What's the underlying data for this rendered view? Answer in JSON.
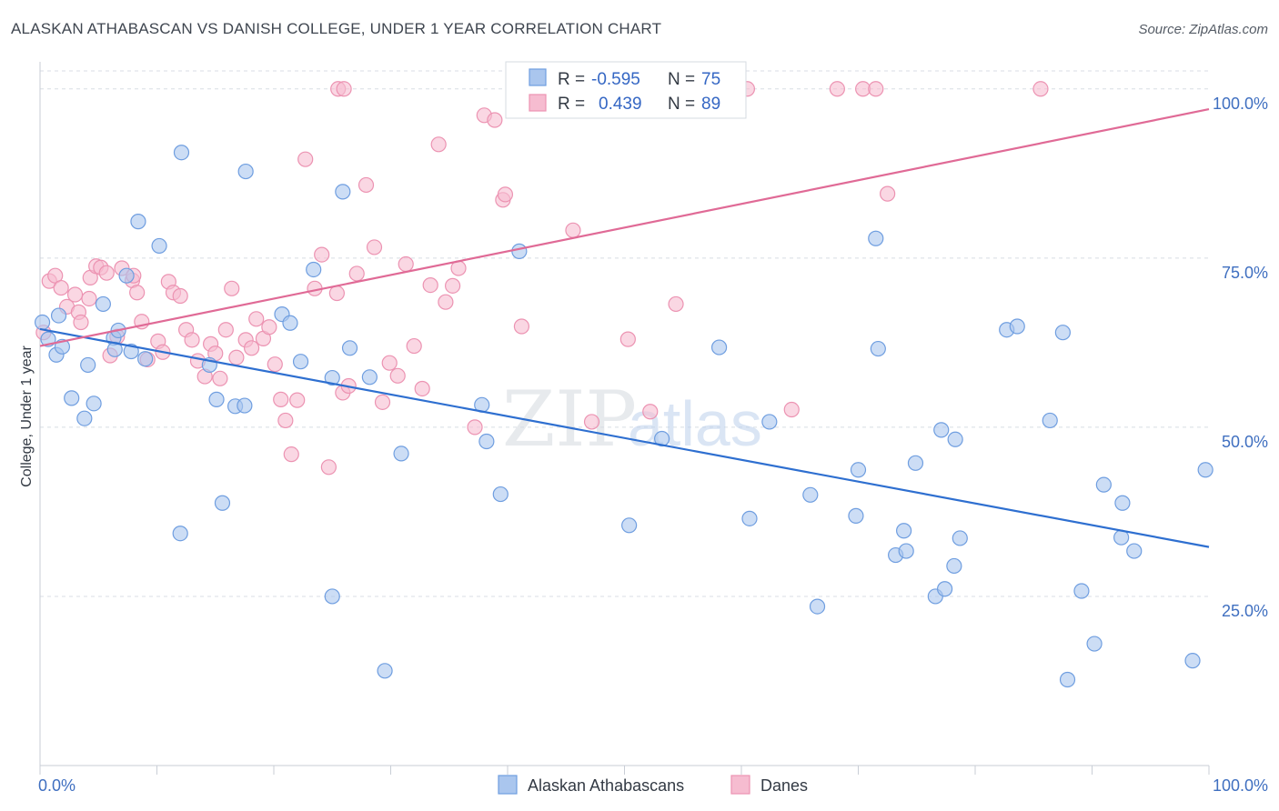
{
  "title": "ALASKAN ATHABASCAN VS DANISH COLLEGE, UNDER 1 YEAR CORRELATION CHART",
  "source": "Source: ZipAtlas.com",
  "watermark": {
    "zip": "ZIP",
    "atlas": "atlas"
  },
  "colors": {
    "blue_fill": "#aac6ee",
    "blue_stroke": "#6f9ee0",
    "blue_line": "#2e6fd0",
    "pink_fill": "#f6bcd0",
    "pink_stroke": "#ec93b2",
    "pink_line": "#e06a96",
    "grid": "#d8dde4",
    "label": "#3f6fc0"
  },
  "stats": {
    "r_label": "R =",
    "n_label": "N =",
    "blue": {
      "r": "-0.595",
      "n": "75"
    },
    "pink": {
      "r": "0.439",
      "n": "89"
    }
  },
  "legend": [
    "Alaskan Athabascans",
    "Danes"
  ],
  "chart_data": {
    "type": "scatter",
    "title": "ALASKAN ATHABASCAN VS DANISH COLLEGE, UNDER 1 YEAR CORRELATION CHART",
    "xlabel": "",
    "ylabel": "College, Under 1 year",
    "xlim": [
      0,
      100
    ],
    "ylim": [
      0,
      104
    ],
    "x_tick_labels": [
      "0.0%",
      "100.0%"
    ],
    "y_ticks": [
      25,
      50,
      75,
      100
    ],
    "y_tick_labels": [
      "25.0%",
      "50.0%",
      "75.0%",
      "100.0%"
    ],
    "grid": "horizontal dashed",
    "legend_position": "bottom-center",
    "series": [
      {
        "name": "Alaskan Athabascans",
        "trend": {
          "x": [
            0,
            100
          ],
          "y": [
            64.5,
            32.3
          ]
        },
        "points": [
          [
            0.2,
            65.5
          ],
          [
            0.7,
            63.0
          ],
          [
            1.4,
            60.7
          ],
          [
            1.6,
            66.5
          ],
          [
            1.9,
            61.9
          ],
          [
            2.7,
            54.3
          ],
          [
            3.8,
            51.3
          ],
          [
            4.1,
            59.2
          ],
          [
            4.6,
            53.5
          ],
          [
            5.4,
            68.2
          ],
          [
            6.3,
            63.2
          ],
          [
            7.4,
            72.4
          ],
          [
            6.4,
            61.5
          ],
          [
            6.7,
            64.3
          ],
          [
            7.8,
            61.2
          ],
          [
            8.4,
            80.4
          ],
          [
            9.0,
            60.1
          ],
          [
            10.2,
            76.8
          ],
          [
            12.1,
            90.6
          ],
          [
            12.0,
            34.3
          ],
          [
            14.5,
            59.2
          ],
          [
            15.1,
            54.1
          ],
          [
            15.6,
            38.8
          ],
          [
            16.7,
            53.1
          ],
          [
            17.5,
            53.2
          ],
          [
            17.6,
            87.8
          ],
          [
            20.7,
            66.7
          ],
          [
            21.4,
            65.4
          ],
          [
            22.3,
            59.7
          ],
          [
            23.4,
            73.3
          ],
          [
            25.0,
            57.3
          ],
          [
            25.9,
            84.8
          ],
          [
            26.5,
            61.7
          ],
          [
            28.2,
            57.4
          ],
          [
            25.0,
            25.0
          ],
          [
            29.5,
            14.0
          ],
          [
            30.9,
            46.1
          ],
          [
            37.8,
            53.3
          ],
          [
            38.2,
            47.9
          ],
          [
            39.4,
            40.1
          ],
          [
            41.0,
            76.0
          ],
          [
            50.4,
            35.5
          ],
          [
            53.2,
            48.3
          ],
          [
            58.1,
            61.8
          ],
          [
            60.7,
            36.5
          ],
          [
            62.4,
            50.8
          ],
          [
            65.9,
            40.0
          ],
          [
            66.5,
            23.5
          ],
          [
            69.8,
            36.9
          ],
          [
            70.0,
            43.7
          ],
          [
            71.5,
            77.9
          ],
          [
            71.7,
            61.6
          ],
          [
            73.2,
            31.1
          ],
          [
            73.9,
            34.7
          ],
          [
            74.1,
            31.7
          ],
          [
            74.9,
            44.7
          ],
          [
            76.6,
            25.0
          ],
          [
            77.1,
            49.6
          ],
          [
            77.4,
            26.1
          ],
          [
            78.2,
            29.5
          ],
          [
            78.7,
            33.6
          ],
          [
            78.3,
            48.2
          ],
          [
            82.7,
            64.4
          ],
          [
            83.6,
            64.9
          ],
          [
            86.4,
            51.0
          ],
          [
            87.9,
            12.7
          ],
          [
            89.1,
            25.8
          ],
          [
            90.2,
            18.0
          ],
          [
            91.0,
            41.5
          ],
          [
            92.5,
            33.7
          ],
          [
            92.6,
            38.8
          ],
          [
            93.6,
            31.7
          ],
          [
            98.6,
            15.5
          ],
          [
            99.7,
            43.7
          ],
          [
            87.5,
            64.0
          ]
        ]
      },
      {
        "name": "Danes",
        "trend": {
          "x": [
            0,
            100
          ],
          "y": [
            62.0,
            97.0
          ]
        },
        "points": [
          [
            0.3,
            64.0
          ],
          [
            0.8,
            71.6
          ],
          [
            1.3,
            72.4
          ],
          [
            1.8,
            70.6
          ],
          [
            2.3,
            67.8
          ],
          [
            3.3,
            67.0
          ],
          [
            3.5,
            65.5
          ],
          [
            4.2,
            69.0
          ],
          [
            4.3,
            72.1
          ],
          [
            4.8,
            73.8
          ],
          [
            5.2,
            73.6
          ],
          [
            5.7,
            72.8
          ],
          [
            6.6,
            63.4
          ],
          [
            7.0,
            73.5
          ],
          [
            7.9,
            71.7
          ],
          [
            8.3,
            69.9
          ],
          [
            8.7,
            65.6
          ],
          [
            9.2,
            60.0
          ],
          [
            10.1,
            62.7
          ],
          [
            10.5,
            61.1
          ],
          [
            11.0,
            71.5
          ],
          [
            11.4,
            69.9
          ],
          [
            12.0,
            69.4
          ],
          [
            12.5,
            64.4
          ],
          [
            13.0,
            62.9
          ],
          [
            13.5,
            59.8
          ],
          [
            14.1,
            57.5
          ],
          [
            14.6,
            62.3
          ],
          [
            15.0,
            60.9
          ],
          [
            15.4,
            57.2
          ],
          [
            15.9,
            64.4
          ],
          [
            16.4,
            70.5
          ],
          [
            16.8,
            60.3
          ],
          [
            17.6,
            62.9
          ],
          [
            18.1,
            61.7
          ],
          [
            18.5,
            66.0
          ],
          [
            19.1,
            63.1
          ],
          [
            19.6,
            64.8
          ],
          [
            20.1,
            59.3
          ],
          [
            20.6,
            54.1
          ],
          [
            21.0,
            51.0
          ],
          [
            21.5,
            46.0
          ],
          [
            22.0,
            54.0
          ],
          [
            22.7,
            89.6
          ],
          [
            23.5,
            70.5
          ],
          [
            24.1,
            75.5
          ],
          [
            24.7,
            44.1
          ],
          [
            25.4,
            69.8
          ],
          [
            25.9,
            55.1
          ],
          [
            26.4,
            56.1
          ],
          [
            27.1,
            72.7
          ],
          [
            27.9,
            85.8
          ],
          [
            28.6,
            76.6
          ],
          [
            29.3,
            53.7
          ],
          [
            29.9,
            59.5
          ],
          [
            30.6,
            57.6
          ],
          [
            31.3,
            74.1
          ],
          [
            32.0,
            62.0
          ],
          [
            32.7,
            55.7
          ],
          [
            33.4,
            71.0
          ],
          [
            34.1,
            91.8
          ],
          [
            34.7,
            68.5
          ],
          [
            35.3,
            70.9
          ],
          [
            35.8,
            73.5
          ],
          [
            37.2,
            50.0
          ],
          [
            38.0,
            96.1
          ],
          [
            38.9,
            95.4
          ],
          [
            39.6,
            83.6
          ],
          [
            39.8,
            84.4
          ],
          [
            41.2,
            64.9
          ],
          [
            44.1,
            100.0
          ],
          [
            45.6,
            79.1
          ],
          [
            47.2,
            50.8
          ],
          [
            50.3,
            63.0
          ],
          [
            52.2,
            52.3
          ],
          [
            54.4,
            68.2
          ],
          [
            60.5,
            100.0
          ],
          [
            64.3,
            52.6
          ],
          [
            68.2,
            100.0
          ],
          [
            70.4,
            100.0
          ],
          [
            71.5,
            100.0
          ],
          [
            72.5,
            84.5
          ],
          [
            85.6,
            100.0
          ],
          [
            25.5,
            100.0
          ],
          [
            26.0,
            100.0
          ],
          [
            42.7,
            100.0
          ],
          [
            8.0,
            72.4
          ],
          [
            3.0,
            69.6
          ],
          [
            6.0,
            60.6
          ]
        ]
      }
    ]
  }
}
